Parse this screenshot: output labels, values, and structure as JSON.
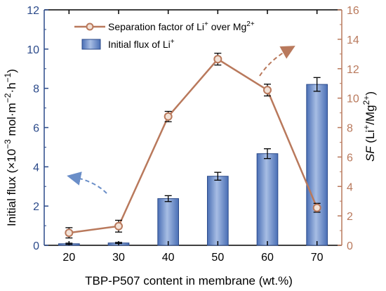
{
  "chart_data": {
    "type": "bar+line",
    "xlabel": "TBP-P507 content in membrane (wt.%)",
    "categories": [
      "20",
      "30",
      "40",
      "50",
      "60",
      "70"
    ],
    "y_left": {
      "label_plain": "Initial flux",
      "label_unit": "(×10",
      "label_exp1": "−3",
      "label_mid": " mol·m",
      "label_exp2": "−2",
      "label_mid2": "·h",
      "label_exp3": "−1",
      "label_end": ")",
      "ylim": [
        0,
        12
      ],
      "ticks": [
        "0",
        "2",
        "4",
        "6",
        "8",
        "10",
        "12"
      ]
    },
    "y_right": {
      "label_italic": "SF",
      "label_rest1": " (Li",
      "label_sup1": "+",
      "label_rest2": "/Mg",
      "label_sup2": "2+",
      "label_rest3": ")",
      "ylim": [
        0,
        16
      ],
      "ticks": [
        "0",
        "2",
        "4",
        "6",
        "8",
        "10",
        "12",
        "14",
        "16"
      ]
    },
    "series": [
      {
        "type": "bar",
        "axis": "left",
        "values": [
          0.08,
          0.12,
          2.38,
          3.52,
          4.67,
          8.2
        ],
        "errors": [
          0.03,
          0.03,
          0.15,
          0.2,
          0.25,
          0.35
        ]
      },
      {
        "type": "line",
        "axis": "right",
        "values": [
          0.85,
          1.3,
          8.75,
          12.65,
          10.55,
          2.55
        ],
        "errors": [
          0.35,
          0.4,
          0.35,
          0.4,
          0.4,
          0.3
        ]
      }
    ],
    "legend": {
      "placement": "top-center",
      "line_label_a": "Separation factor of Li",
      "line_sup_a": "+",
      "line_label_b": " over Mg",
      "line_sup_b": "2+",
      "bar_label_a": "Initial flux of Li",
      "bar_sup_a": "+"
    },
    "colors": {
      "bar_fill_top": "#8aa6d8",
      "bar_fill_bottom": "#4a6fb5",
      "bar_stroke": "#2b4a8a",
      "line": "#b9795c",
      "marker_fill": "#f3e3d8",
      "left_axis": "#2b4a8a",
      "right_axis": "#b9795c",
      "arrow_left": "#6a8ec8",
      "arrow_right": "#b9795c"
    },
    "grid": false
  }
}
